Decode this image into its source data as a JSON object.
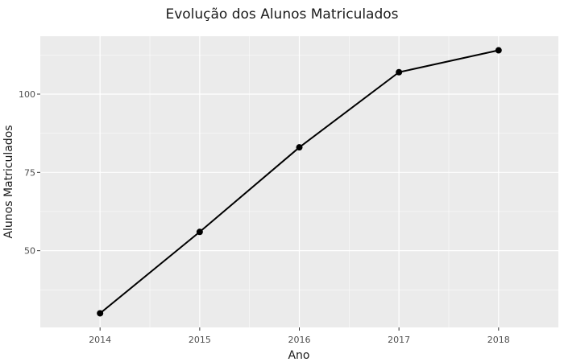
{
  "colors": {
    "panel_background": "#ebebeb",
    "grid": "#ffffff",
    "line": "#000000",
    "point": "#000000",
    "text": "#1a1a1a",
    "tick_text": "#4d4d4d"
  },
  "chart_data": {
    "type": "line",
    "title": "Evolução dos Alunos Matriculados",
    "xlabel": "Ano",
    "ylabel": "Alunos Matriculados",
    "x": [
      2014,
      2015,
      2016,
      2017,
      2018
    ],
    "series": [
      {
        "values": [
          30,
          56,
          83,
          107,
          114
        ],
        "markers": true
      }
    ],
    "x_ticks": [
      "2014",
      "2015",
      "2016",
      "2017",
      "2018"
    ],
    "y_ticks": [
      50,
      75,
      100
    ],
    "xlim": [
      2013.4,
      2018.6
    ],
    "ylim": [
      25.5,
      118.5
    ],
    "grid": true,
    "legend": "none"
  }
}
